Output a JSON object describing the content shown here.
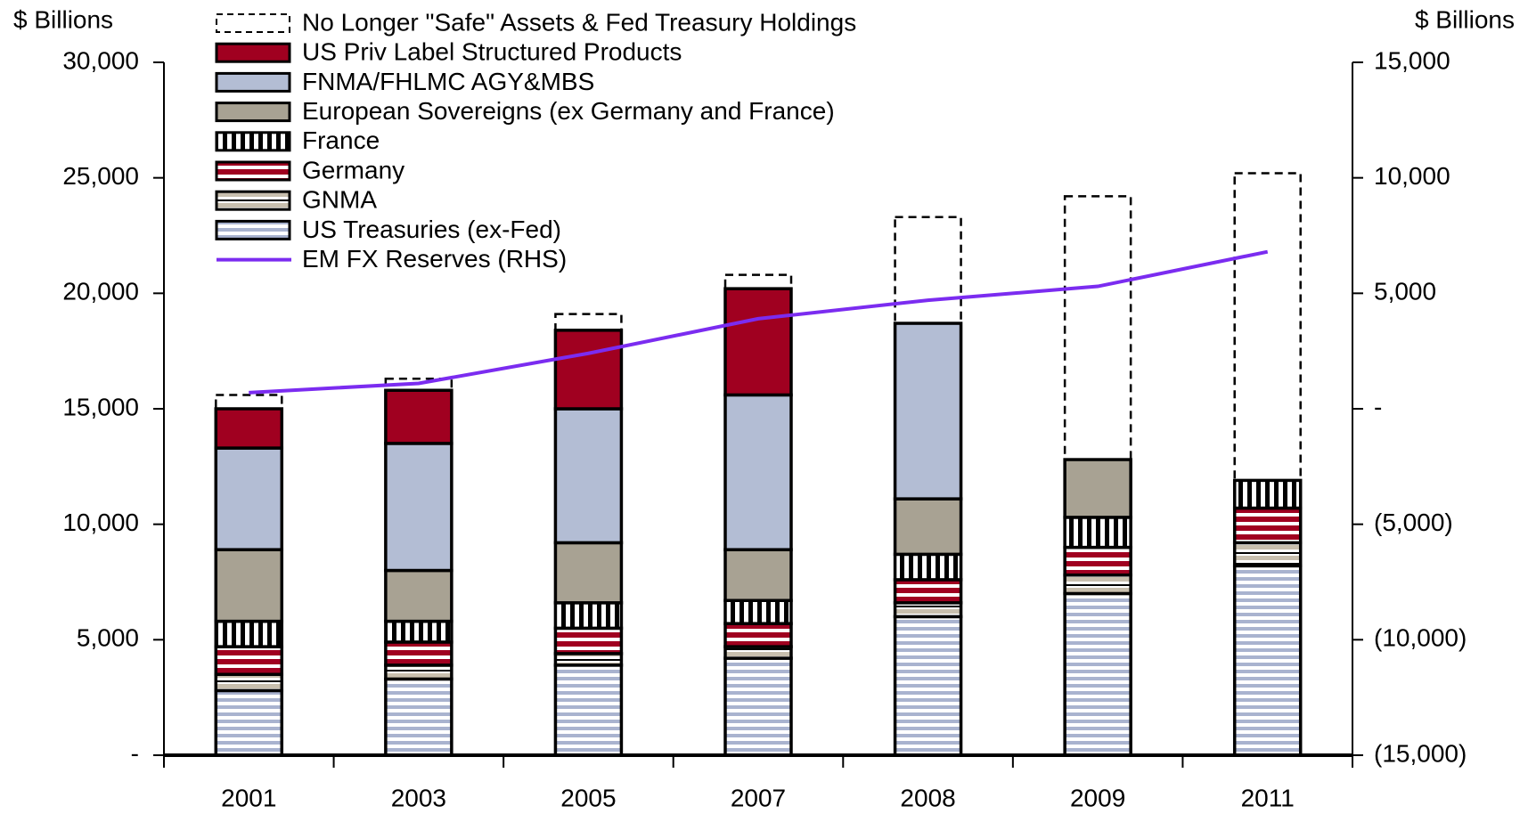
{
  "chart_data": {
    "type": "bar",
    "stacked": true,
    "ylabel": "$ Billions",
    "y2label": "$ Billions",
    "categories": [
      "2001",
      "2003",
      "2005",
      "2007",
      "2008",
      "2009",
      "2011"
    ],
    "series": [
      {
        "name": "No Longer \"Safe\" Assets & Fed Treasury Holdings",
        "color": "#ffffff",
        "pattern": "dashed",
        "values": [
          600,
          500,
          700,
          600,
          4600,
          11400,
          13300
        ]
      },
      {
        "name": "US Priv Label Structured Products",
        "color": "#a00020",
        "pattern": "solid",
        "values": [
          1700,
          2300,
          3400,
          4600,
          0,
          0,
          0
        ]
      },
      {
        "name": "FNMA/FHLMC AGY&MBS",
        "color": "#b3bdd4",
        "pattern": "solid",
        "values": [
          4400,
          5500,
          5800,
          6700,
          7600,
          0,
          0
        ]
      },
      {
        "name": "European Sovereigns (ex Germany and France)",
        "color": "#a8a293",
        "pattern": "solid",
        "values": [
          3100,
          2200,
          2600,
          2200,
          2400,
          2500,
          0
        ]
      },
      {
        "name": "France",
        "color": "#000000",
        "pattern": "vstripe",
        "values": [
          1100,
          900,
          1100,
          1000,
          1100,
          1300,
          1200
        ]
      },
      {
        "name": "Germany",
        "color": "#a00020",
        "pattern": "hstripe",
        "values": [
          1200,
          1000,
          1100,
          1000,
          1000,
          1200,
          1500
        ]
      },
      {
        "name": "GNMA",
        "color": "#c8bfae",
        "pattern": "hstripe",
        "values": [
          700,
          600,
          500,
          500,
          600,
          800,
          1000
        ]
      },
      {
        "name": "US Treasuries (ex-Fed)",
        "color": "#a9b3cf",
        "pattern": "hstripe",
        "values": [
          2800,
          3300,
          3900,
          4200,
          6000,
          7000,
          8200
        ]
      },
      {
        "name": "EM FX Reserves (RHS)",
        "type": "line",
        "axis": "y2",
        "color": "#7b2cf0",
        "values": [
          700,
          1100,
          2400,
          3900,
          4700,
          5300,
          6800
        ]
      }
    ],
    "ylim": [
      0,
      30000
    ],
    "yticks": [
      {
        "value": 0,
        "label": "-"
      },
      {
        "value": 5000,
        "label": "5,000"
      },
      {
        "value": 10000,
        "label": "10,000"
      },
      {
        "value": 15000,
        "label": "15,000"
      },
      {
        "value": 20000,
        "label": "20,000"
      },
      {
        "value": 25000,
        "label": "25,000"
      },
      {
        "value": 30000,
        "label": "30,000"
      }
    ],
    "y2lim": [
      -15000,
      15000
    ],
    "y2ticks": [
      {
        "value": -15000,
        "label": "(15,000)"
      },
      {
        "value": -10000,
        "label": "(10,000)"
      },
      {
        "value": -5000,
        "label": "(5,000)"
      },
      {
        "value": 0,
        "label": "-"
      },
      {
        "value": 5000,
        "label": "5,000"
      },
      {
        "value": 10000,
        "label": "10,000"
      },
      {
        "value": 15000,
        "label": "15,000"
      }
    ],
    "legend": "top-left"
  }
}
